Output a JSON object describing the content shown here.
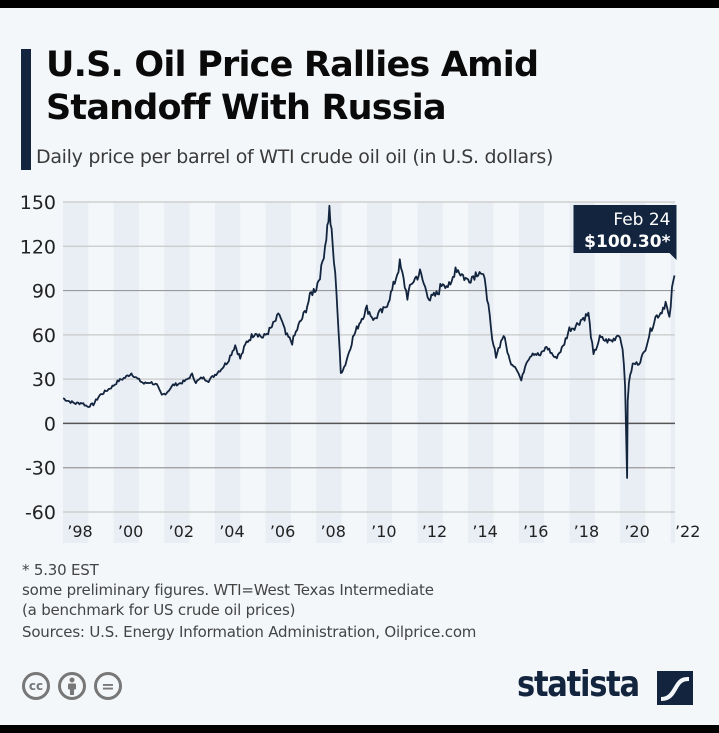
{
  "header": {
    "title": "U.S. Oil Price Rallies Amid Standoff With Russia",
    "subtitle": "Daily price per barrel of WTI crude oil oil (in U.S. dollars)"
  },
  "colors": {
    "background": "#f4f7fa",
    "accent": "#13253e",
    "line": "#13253e",
    "band": "#e9eef5",
    "grid": "#c8c8c8",
    "zero_line": "#555555",
    "text": "#222222"
  },
  "chart_data": {
    "type": "line",
    "title": "U.S. Oil Price Rallies Amid Standoff With Russia",
    "subtitle": "Daily price per barrel of WTI crude oil oil (in U.S. dollars)",
    "xlabel": "",
    "ylabel": "",
    "ylim": [
      -60,
      150
    ],
    "yticks": [
      150,
      120,
      90,
      60,
      30,
      0,
      -30,
      -60
    ],
    "xlim": [
      1998.0,
      2022.17
    ],
    "xtick_values": [
      1998,
      2000,
      2002,
      2004,
      2006,
      2008,
      2010,
      2012,
      2014,
      2016,
      2018,
      2020,
      2022
    ],
    "xtick_labels": [
      "’98",
      "’00",
      "’02",
      "’04",
      "’06",
      "’08",
      "’10",
      "’12",
      "’14",
      "’16",
      "’18",
      "’20",
      "’22"
    ],
    "grid": true,
    "legend": "none",
    "shaded_bands": "alternating even years",
    "series": [
      {
        "name": "WTI crude oil price (USD per barrel)",
        "x": [
          1998.0,
          1998.25,
          1998.5,
          1998.75,
          1998.96,
          1999.2,
          1999.45,
          1999.7,
          1999.95,
          2000.2,
          2000.45,
          2000.7,
          2000.95,
          2001.2,
          2001.45,
          2001.7,
          2001.9,
          2002.1,
          2002.35,
          2002.6,
          2002.85,
          2003.1,
          2003.25,
          2003.5,
          2003.75,
          2004.0,
          2004.25,
          2004.5,
          2004.8,
          2005.0,
          2005.25,
          2005.6,
          2005.9,
          2006.2,
          2006.55,
          2006.8,
          2007.05,
          2007.3,
          2007.55,
          2007.8,
          2008.0,
          2008.2,
          2008.4,
          2008.52,
          2008.65,
          2008.8,
          2008.97,
          2009.15,
          2009.45,
          2009.7,
          2010.0,
          2010.3,
          2010.45,
          2010.7,
          2011.0,
          2011.3,
          2011.6,
          2011.8,
          2012.1,
          2012.3,
          2012.5,
          2012.8,
          2013.0,
          2013.3,
          2013.5,
          2013.7,
          2013.95,
          2014.2,
          2014.45,
          2014.7,
          2014.95,
          2015.1,
          2015.4,
          2015.65,
          2015.9,
          2016.1,
          2016.3,
          2016.55,
          2016.85,
          2017.1,
          2017.45,
          2017.75,
          2018.0,
          2018.25,
          2018.45,
          2018.75,
          2018.95,
          2019.2,
          2019.45,
          2019.7,
          2019.95,
          2020.1,
          2020.2,
          2020.28,
          2020.3,
          2020.35,
          2020.5,
          2020.75,
          2020.95,
          2021.15,
          2021.4,
          2021.6,
          2021.8,
          2021.95,
          2022.05,
          2022.15
        ],
        "values": [
          17,
          15,
          13.5,
          14,
          11.5,
          13,
          19,
          22,
          25,
          29,
          31,
          34,
          30,
          27,
          28,
          26,
          19,
          21,
          26,
          27,
          29,
          33,
          28,
          31,
          29,
          33,
          37,
          42,
          53,
          44,
          55,
          62,
          58,
          64,
          74,
          60,
          55,
          66,
          75,
          88,
          92,
          104,
          127,
          145,
          120,
          90,
          34,
          40,
          58,
          68,
          78,
          70,
          74,
          77,
          90,
          108,
          86,
          96,
          102,
          92,
          84,
          88,
          96,
          92,
          106,
          102,
          97,
          100,
          104,
          94,
          56,
          46,
          60,
          42,
          38,
          29,
          42,
          48,
          46,
          52,
          44,
          52,
          64,
          66,
          70,
          74,
          46,
          58,
          56,
          56,
          61,
          52,
          25,
          -37,
          15,
          28,
          40,
          41,
          48,
          60,
          72,
          75,
          82,
          70,
          90,
          100.3
        ]
      }
    ],
    "annotations": [
      {
        "label_date": "Feb 24",
        "label_value": "$100.30*",
        "x": 2022.15,
        "y": 100.3
      }
    ]
  },
  "footnotes": {
    "note1": "* 5.30 EST",
    "note2": "some preliminary figures. WTI=West Texas Intermediate",
    "note3": "(a benchmark for US crude oil prices)",
    "sources": "Sources: U.S. Energy Information Administration, Oilprice.com"
  },
  "footer": {
    "license_icons": [
      "cc-icon",
      "by-attribution-icon",
      "nd-no-derivatives-icon"
    ],
    "cc_label": "cc",
    "nd_label": "=",
    "brand": "statista"
  }
}
